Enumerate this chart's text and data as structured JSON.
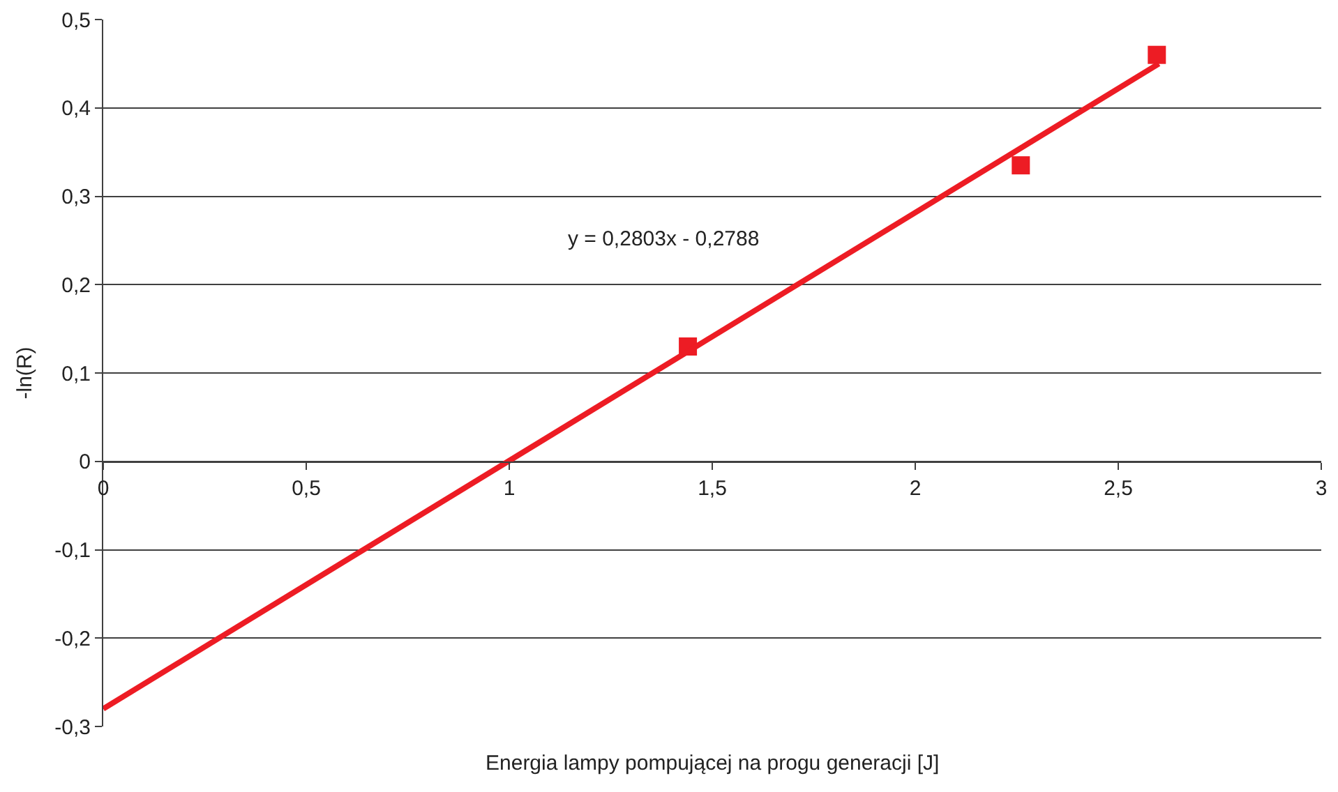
{
  "chart_data": {
    "type": "scatter",
    "xlabel": "Energia lampy pompującej na progu generacji [J]",
    "ylabel": "-ln(R)",
    "annotations": [
      "y = 0,2803x - 0,2788"
    ],
    "series": [
      {
        "color": "#ed1c24",
        "x": [
          1.44,
          2.26,
          2.595
        ],
        "values": [
          0.13,
          0.335,
          0.46
        ],
        "marker": "square"
      },
      {
        "type": "line",
        "color": "#ed1c24",
        "x": [
          0,
          2.6
        ],
        "values": [
          -0.28,
          0.45
        ],
        "marker": "none",
        "line_style": "solid"
      }
    ],
    "xlim": [
      0,
      3
    ],
    "xticks": [
      0,
      {
        "value": 0.5,
        "label": "0,5"
      },
      1,
      {
        "value": 1.5,
        "label": "1,5"
      },
      2,
      {
        "value": 2.5,
        "label": "2,5"
      },
      3
    ],
    "ylim": [
      -0.3,
      0.5
    ],
    "yticks": [
      {
        "value": -0.3,
        "label": "-0,3"
      },
      {
        "value": -0.2,
        "label": "-0,2"
      },
      {
        "value": -0.1,
        "label": "-0,1"
      },
      0,
      {
        "value": 0.1,
        "label": "0,1"
      },
      {
        "value": 0.2,
        "label": "0,2"
      },
      {
        "value": 0.3,
        "label": "0,3"
      },
      {
        "value": 0.4,
        "label": "0,4"
      },
      {
        "value": 0.5,
        "label": "0,5"
      }
    ],
    "grid": "y"
  }
}
